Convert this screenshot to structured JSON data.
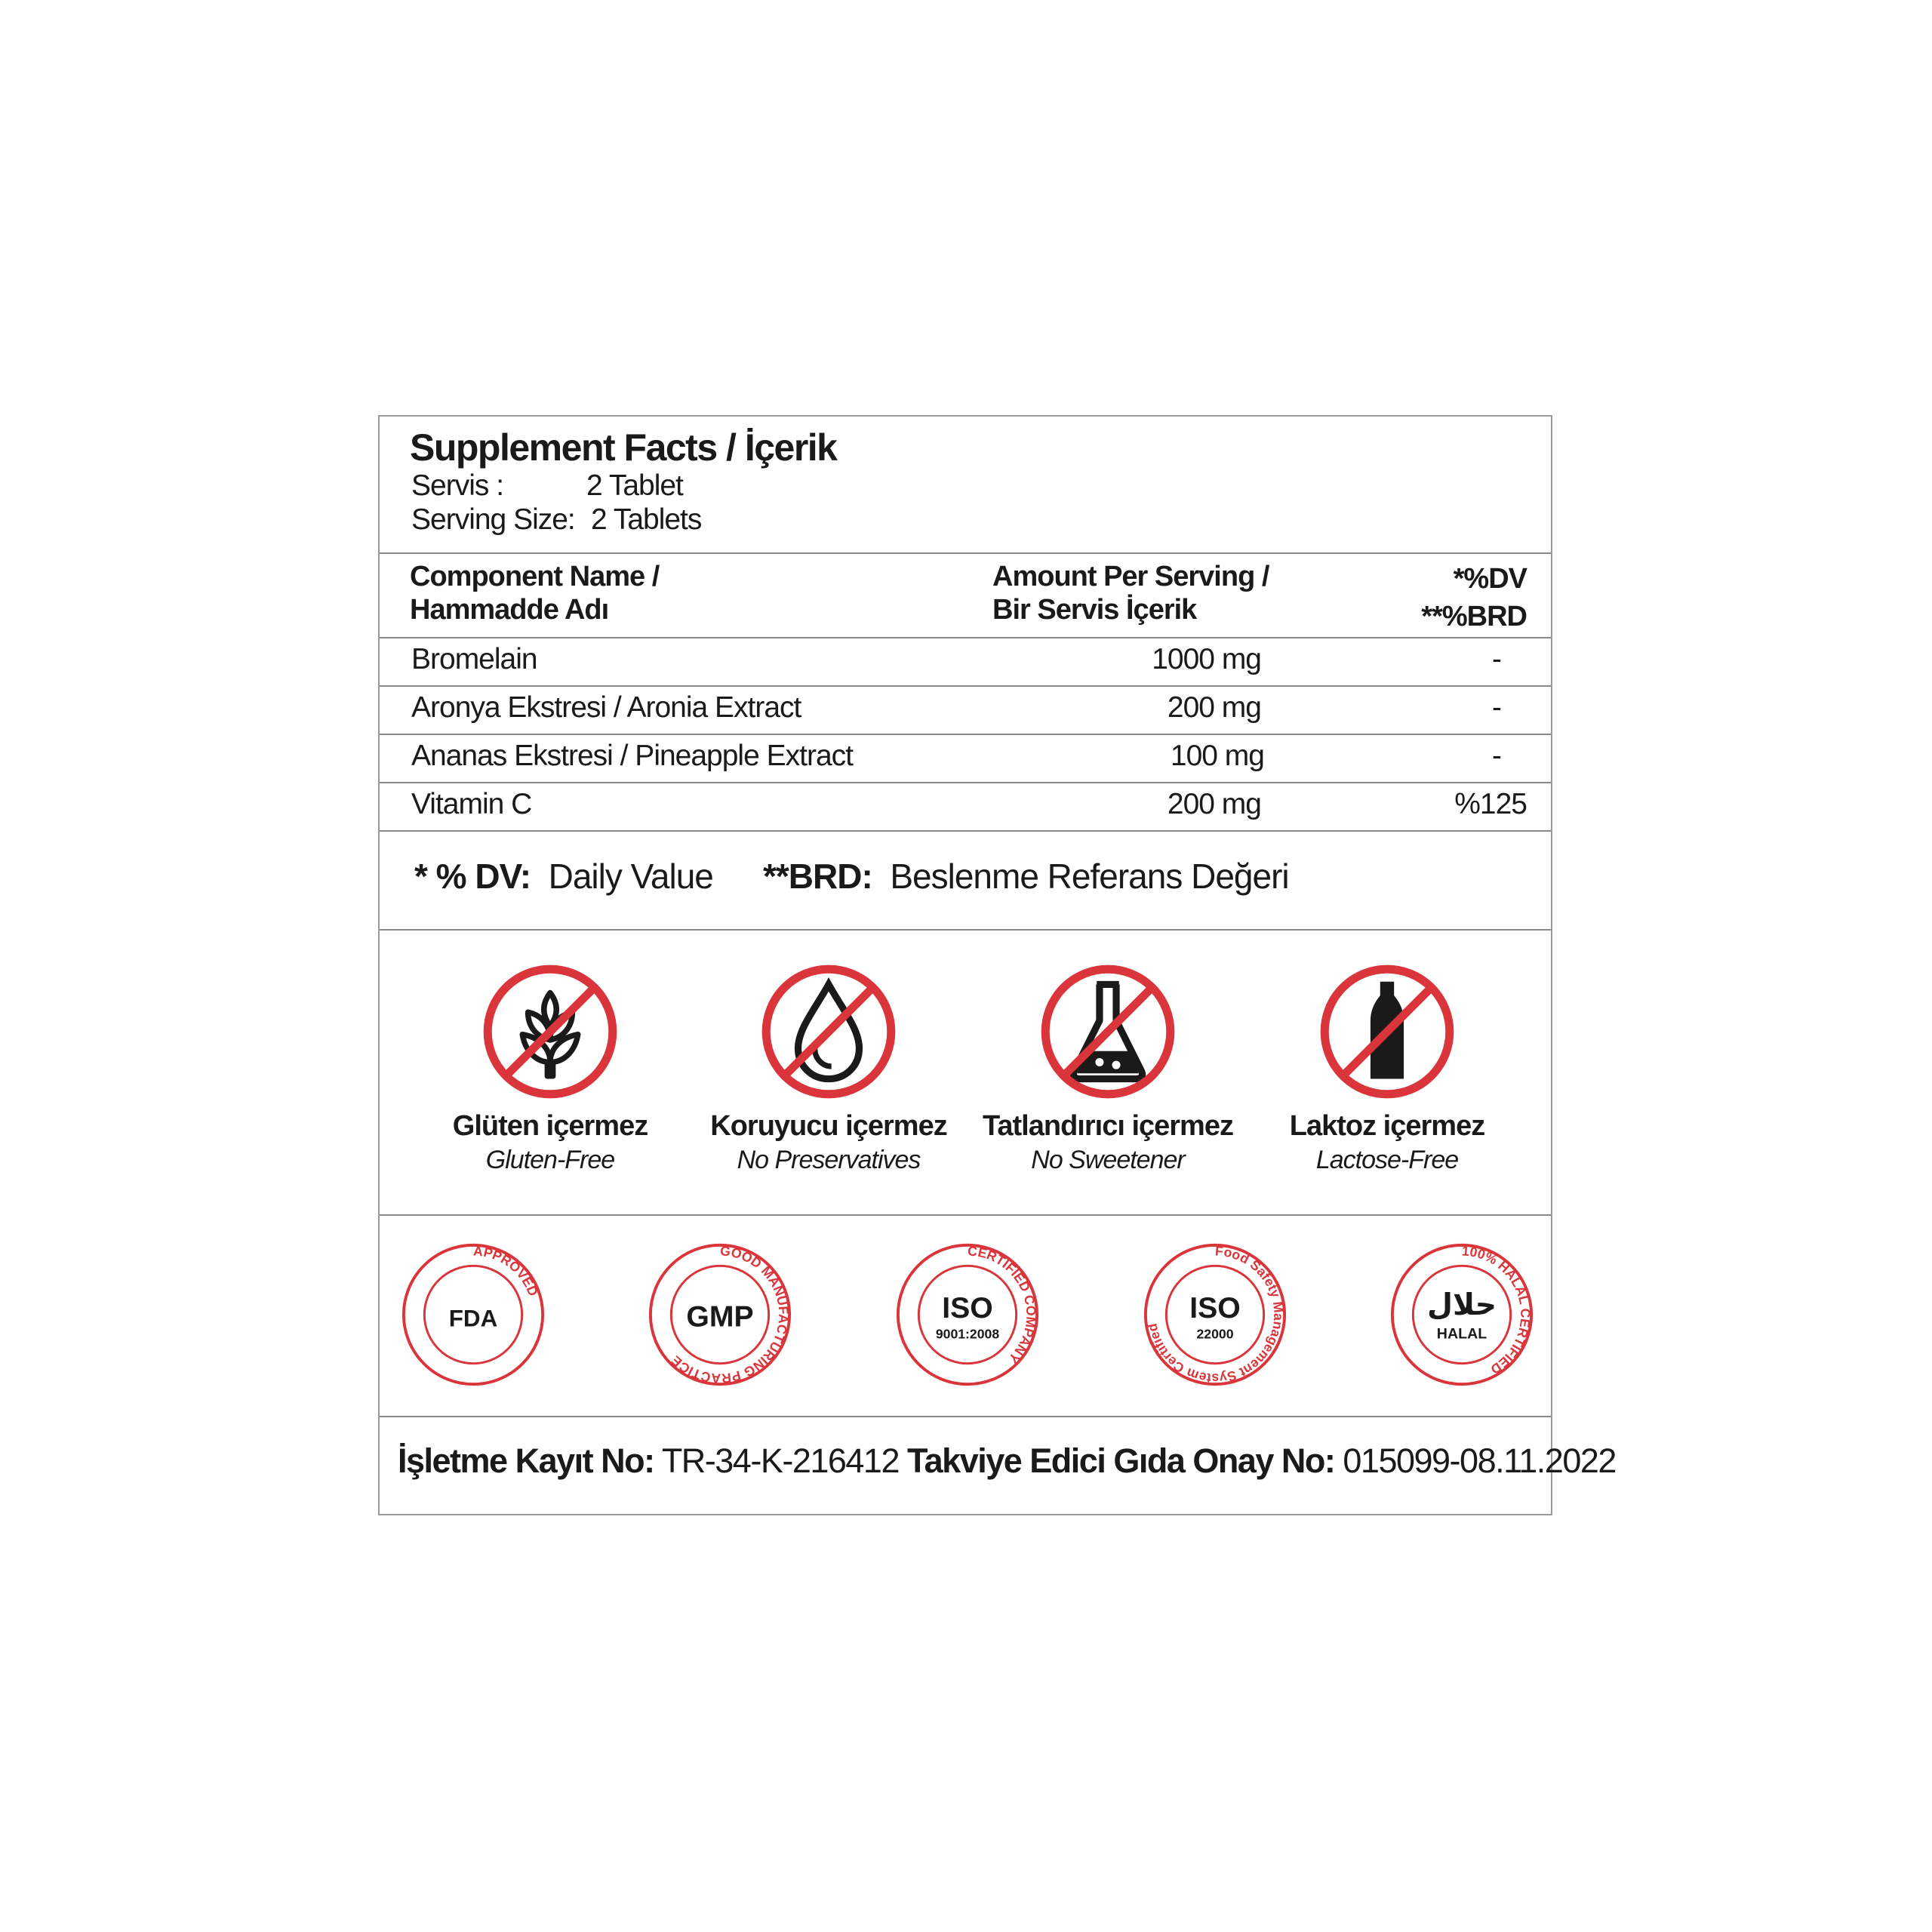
{
  "header": {
    "title": "Supplement Facts / İçerik",
    "servis_label": "Servis :",
    "servis_value": "2 Tablet",
    "serving_label": "Serving Size:",
    "serving_value": "2 Tablets"
  },
  "table": {
    "columns": {
      "name_line1": "Component Name /",
      "name_line2": "Hammadde Adı",
      "amount_line1": "Amount Per Serving /",
      "amount_line2": "Bir Servis İçerik",
      "dv_line1": "*%DV",
      "dv_line2": "**%BRD"
    },
    "rows": [
      {
        "name": "Bromelain",
        "amount": "1000 mg",
        "dv": "-"
      },
      {
        "name": "Aronya Ekstresi /  Aronia Extract",
        "amount": "200 mg",
        "dv": "-"
      },
      {
        "name": "Ananas Ekstresi / Pineapple Extract",
        "amount": "100 mg",
        "dv": "-"
      },
      {
        "name": "Vitamin C",
        "amount": "200 mg",
        "dv": "%125"
      }
    ]
  },
  "footnote": {
    "dv_key": "* % DV:",
    "dv_text": "Daily Value",
    "brd_key": "**BRD:",
    "brd_text": "Beslenme Referans Değeri"
  },
  "free_from": [
    {
      "icon": "no-gluten-icon",
      "tr": "Glüten içermez",
      "en": "Gluten-Free"
    },
    {
      "icon": "no-preservatives-icon",
      "tr": "Koruyucu içermez",
      "en": "No Preservatives"
    },
    {
      "icon": "no-sweetener-icon",
      "tr": "Tatlandırıcı içermez",
      "en": "No Sweetener"
    },
    {
      "icon": "no-lactose-icon",
      "tr": "Laktoz içermez",
      "en": "Lactose-Free"
    }
  ],
  "certifications": [
    {
      "icon": "fda-approved-seal",
      "text": "FDA",
      "ring": "APPROVED"
    },
    {
      "icon": "gmp-seal",
      "text": "GMP",
      "ring": "GOOD MANUFACTURING PRACTICE"
    },
    {
      "icon": "iso-9001-seal",
      "text": "ISO",
      "sub": "9001:2008",
      "ring": "CERTIFIED COMPANY"
    },
    {
      "icon": "iso-22000-seal",
      "text": "ISO",
      "sub": "22000",
      "ring": "Food Safety Management System Certified"
    },
    {
      "icon": "halal-seal",
      "text": "HALAL",
      "ring": "100% HALAL CERTIFIED"
    }
  ],
  "registration": {
    "label1": "İşletme Kayıt No:",
    "value1": "TR-34-K-216412",
    "label2": "Takviye Edici Gıda Onay No:",
    "value2": "015099-08.11.2022"
  },
  "colors": {
    "accent_red": "#d9353a",
    "text": "#1a1a1a",
    "border": "#8a8a8a"
  }
}
